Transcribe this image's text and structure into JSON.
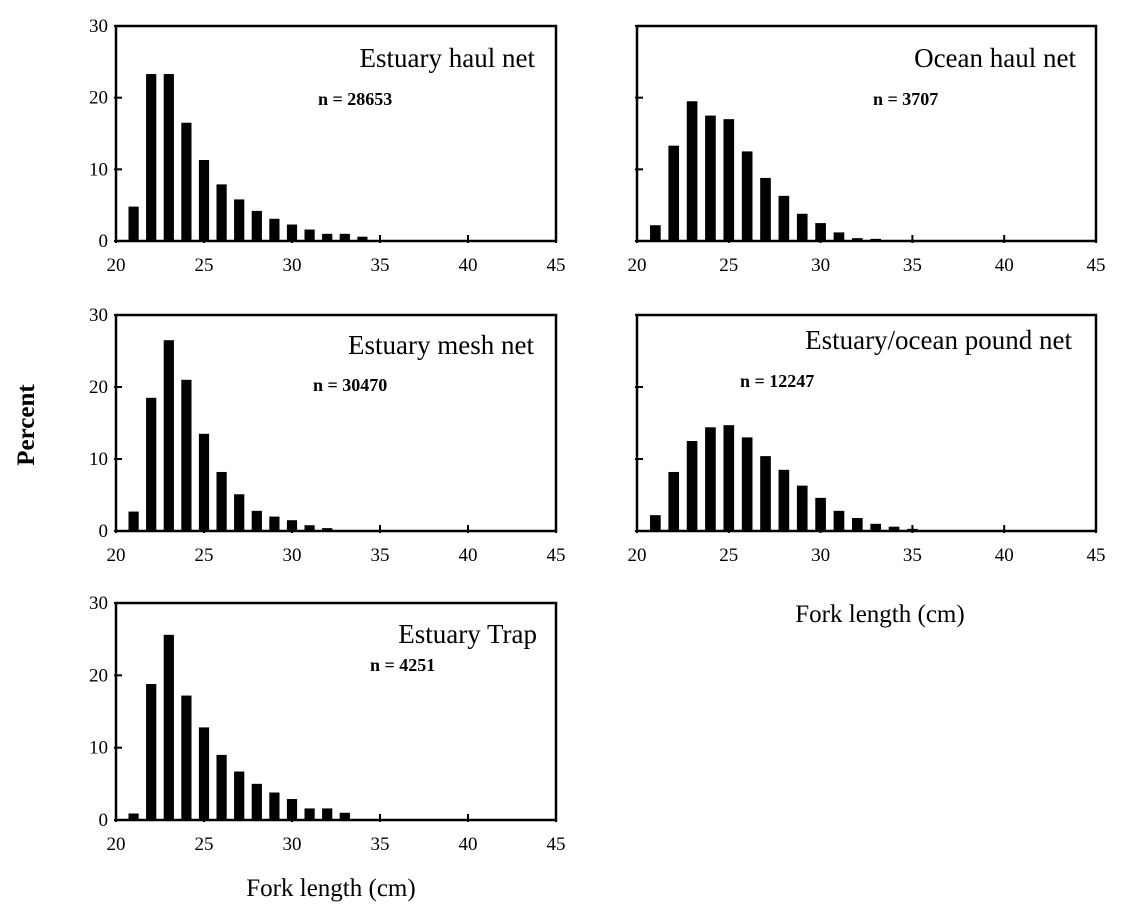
{
  "figure": {
    "ylabel": "Percent",
    "xlabel": "Fork length (cm)"
  },
  "chart_data": [
    {
      "type": "bar",
      "title": "Estuary haul net",
      "subtitle": "n = 28653",
      "x": [
        21,
        22,
        23,
        24,
        25,
        26,
        27,
        28,
        29,
        30,
        31,
        32,
        33,
        34
      ],
      "values": [
        4.8,
        23.3,
        23.3,
        16.5,
        11.3,
        7.9,
        5.8,
        4.2,
        3.1,
        2.3,
        1.6,
        1.0,
        1.0,
        0.6
      ],
      "xlim": [
        20,
        45
      ],
      "ylim": [
        0,
        30
      ],
      "xticks": [
        20,
        25,
        30,
        35,
        40,
        45
      ],
      "yticks": [
        0,
        10,
        20,
        30
      ],
      "xtick_labels": [
        "20",
        "25",
        "30",
        "35",
        "40",
        "45"
      ],
      "ytick_labels": [
        "0",
        "10",
        "20",
        "30"
      ]
    },
    {
      "type": "bar",
      "title": "Ocean haul net",
      "subtitle": "n = 3707",
      "x": [
        21,
        22,
        23,
        24,
        25,
        26,
        27,
        28,
        29,
        30,
        31,
        32,
        33
      ],
      "values": [
        2.2,
        13.3,
        19.5,
        17.5,
        17.0,
        12.5,
        8.8,
        6.3,
        3.8,
        2.5,
        1.2,
        0.4,
        0.3
      ],
      "xlim": [
        20,
        45
      ],
      "ylim": [
        0,
        30
      ],
      "xticks": [
        20,
        25,
        30,
        35,
        40,
        45
      ],
      "yticks": [
        0,
        10,
        20,
        30
      ],
      "xtick_labels": [
        "20",
        "25",
        "30",
        "35",
        "40",
        "45"
      ],
      "ytick_labels": []
    },
    {
      "type": "bar",
      "title": "Estuary mesh net",
      "subtitle": "n = 30470",
      "x": [
        21,
        22,
        23,
        24,
        25,
        26,
        27,
        28,
        29,
        30,
        31,
        32
      ],
      "values": [
        2.7,
        18.5,
        26.5,
        21.0,
        13.5,
        8.2,
        5.1,
        2.8,
        2.0,
        1.5,
        0.8,
        0.4
      ],
      "xlim": [
        20,
        45
      ],
      "ylim": [
        0,
        30
      ],
      "xticks": [
        20,
        25,
        30,
        35,
        40,
        45
      ],
      "yticks": [
        0,
        10,
        20,
        30
      ],
      "xtick_labels": [
        "20",
        "25",
        "30",
        "35",
        "40",
        "45"
      ],
      "ytick_labels": [
        "0",
        "10",
        "20",
        "30"
      ]
    },
    {
      "type": "bar",
      "title": "Estuary/ocean pound net",
      "subtitle": "n = 12247",
      "x": [
        21,
        22,
        23,
        24,
        25,
        26,
        27,
        28,
        29,
        30,
        31,
        32,
        33,
        34,
        35
      ],
      "values": [
        2.2,
        8.2,
        12.5,
        14.4,
        14.7,
        13.0,
        10.4,
        8.5,
        6.3,
        4.6,
        2.8,
        1.8,
        1.0,
        0.6,
        0.3
      ],
      "xlim": [
        20,
        45
      ],
      "ylim": [
        0,
        30
      ],
      "xticks": [
        20,
        25,
        30,
        35,
        40,
        45
      ],
      "yticks": [
        0,
        10,
        20,
        30
      ],
      "xtick_labels": [
        "20",
        "25",
        "30",
        "35",
        "40",
        "45"
      ],
      "ytick_labels": []
    },
    {
      "type": "bar",
      "title": "Estuary Trap",
      "subtitle": "n = 4251",
      "x": [
        21,
        22,
        23,
        24,
        25,
        26,
        27,
        28,
        29,
        30,
        31,
        32,
        33
      ],
      "values": [
        0.9,
        18.8,
        25.6,
        17.2,
        12.8,
        9.0,
        6.7,
        5.0,
        3.8,
        2.9,
        1.6,
        1.6,
        1.0
      ],
      "xlim": [
        20,
        45
      ],
      "ylim": [
        0,
        30
      ],
      "xticks": [
        20,
        25,
        30,
        35,
        40,
        45
      ],
      "yticks": [
        0,
        10,
        20,
        30
      ],
      "xtick_labels": [
        "20",
        "25",
        "30",
        "35",
        "40",
        "45"
      ],
      "ytick_labels": [
        "0",
        "10",
        "20",
        "30"
      ]
    }
  ]
}
